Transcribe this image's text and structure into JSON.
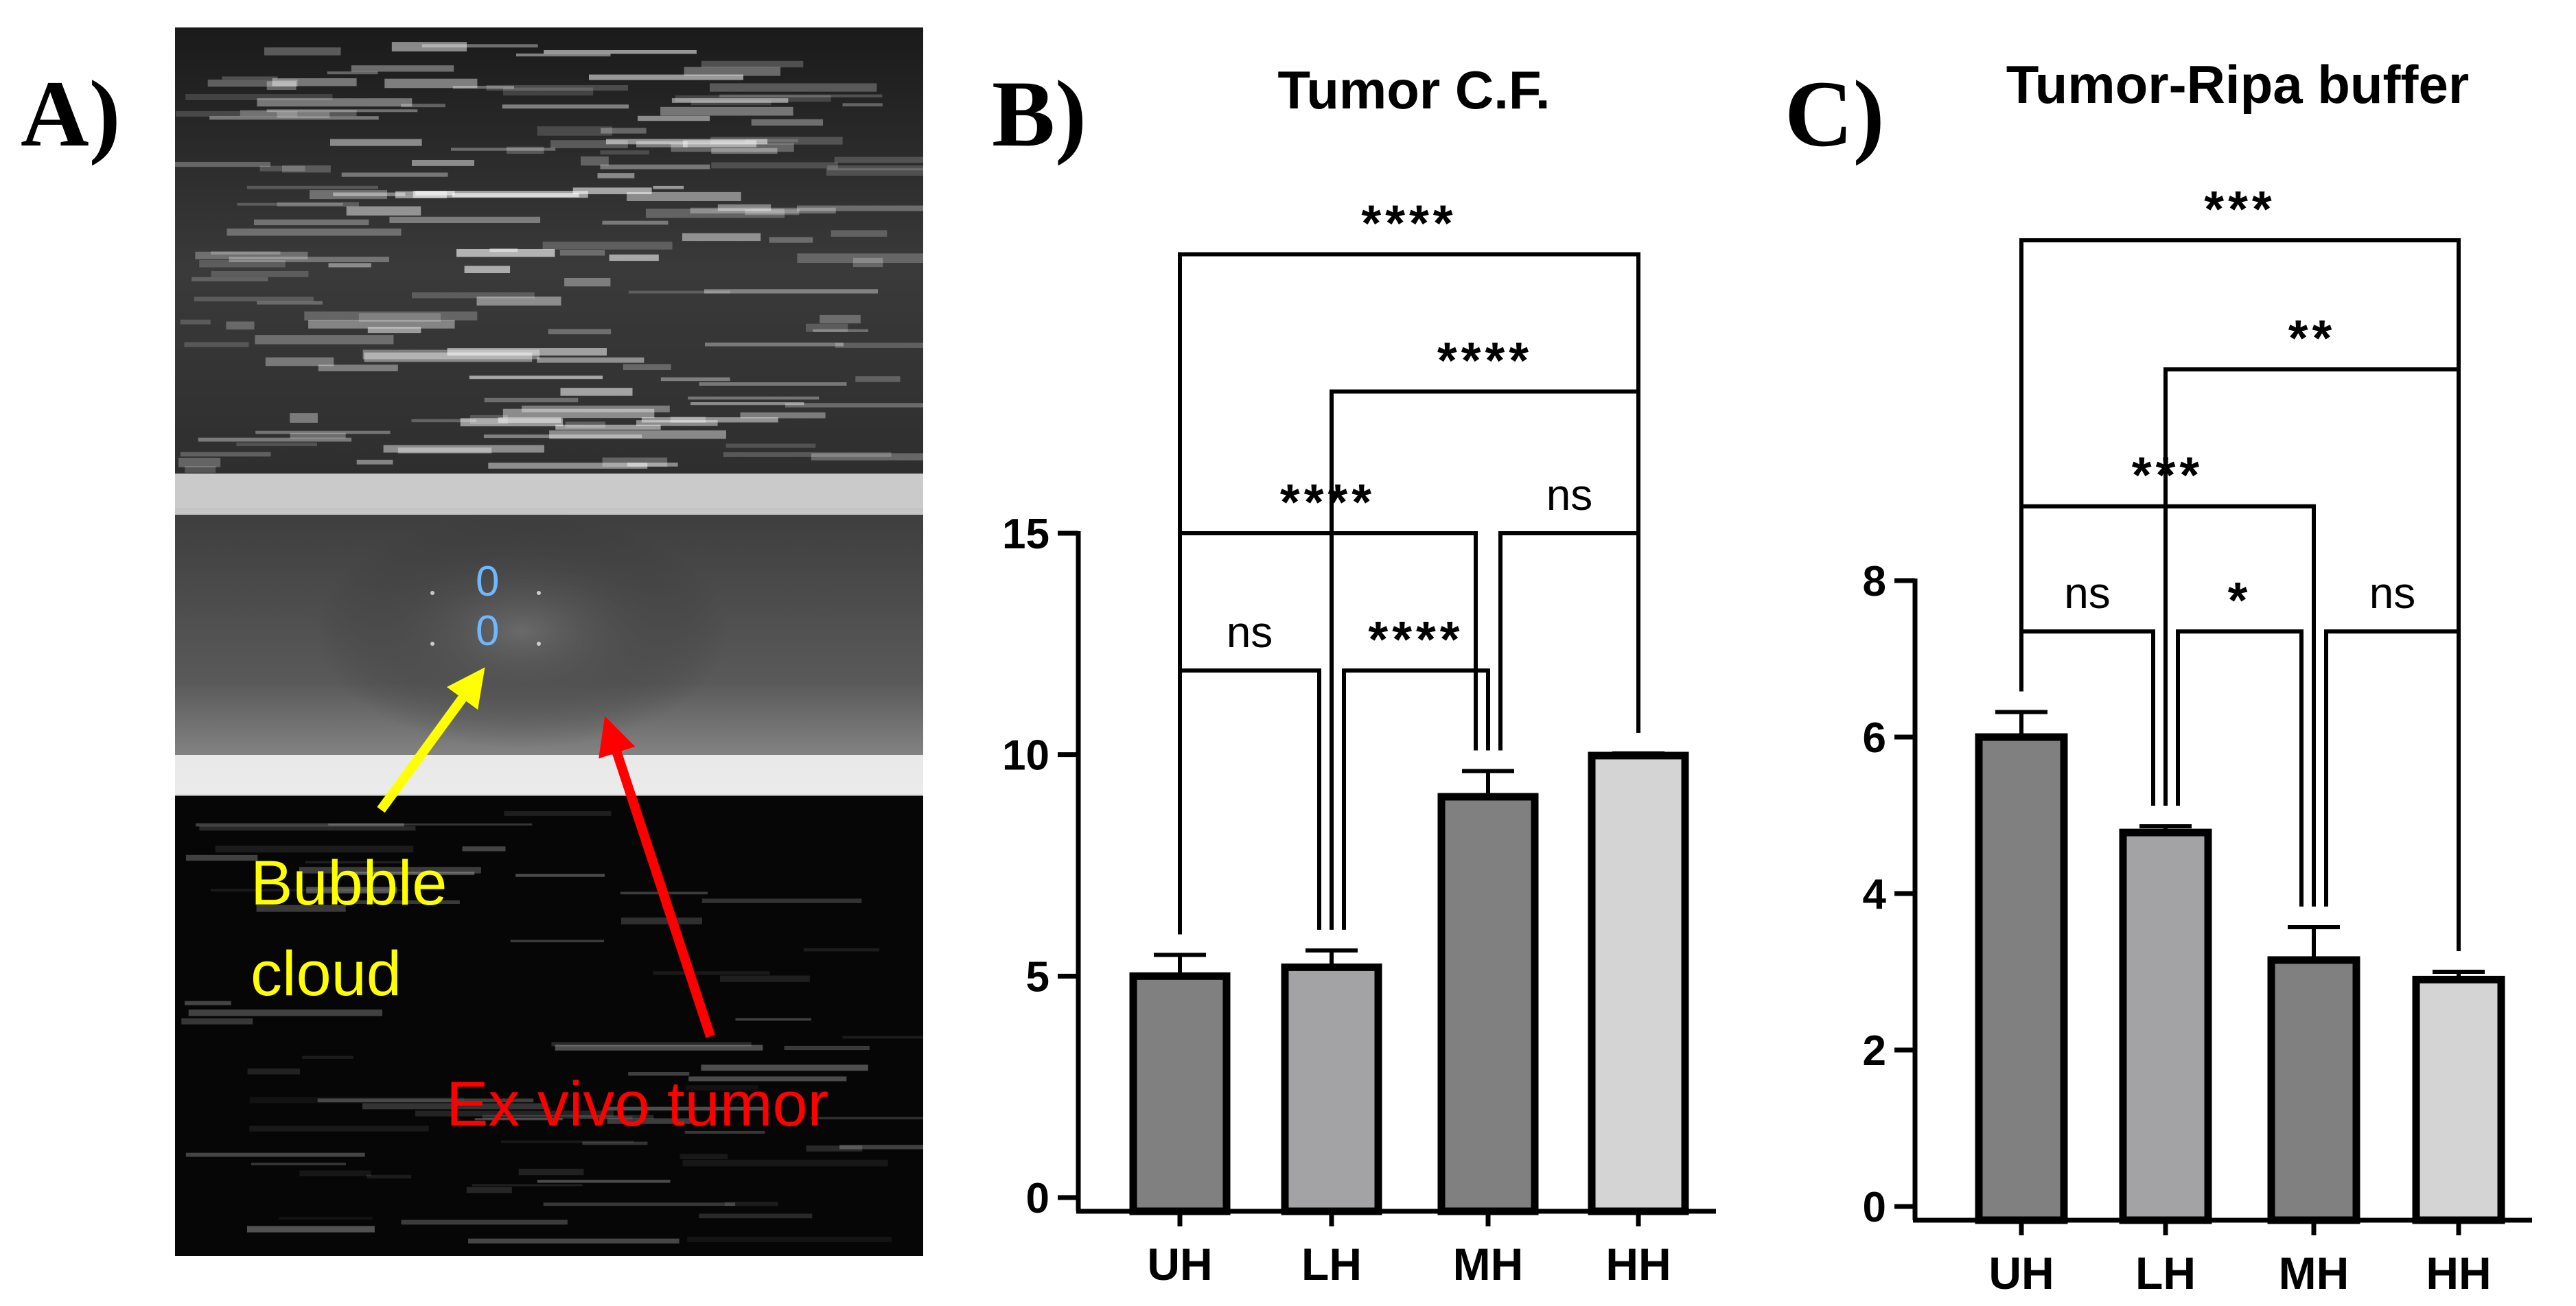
{
  "panels": {
    "a": {
      "label": "A)",
      "annotations": {
        "bubble_line1": "Bubble",
        "bubble_line2": "cloud",
        "tumor": "Ex vivo tumor",
        "marker_top": "0",
        "marker_bottom": "0"
      },
      "colors": {
        "bubble": "#ffff00",
        "tumor": "#ff0000"
      }
    },
    "b": {
      "label": "B)"
    },
    "c": {
      "label": "C)"
    }
  },
  "chart_data": [
    {
      "type": "bar",
      "title": "Tumor C.F.",
      "categories": [
        "UH",
        "LH",
        "MH",
        "HH"
      ],
      "values": [
        5.0,
        5.2,
        9.05,
        9.98
      ],
      "errors": [
        0.48,
        0.38,
        0.58,
        0.05
      ],
      "bar_colors": [
        "#808080",
        "#a3a3a6",
        "#808080",
        "#d4d4d4"
      ],
      "xlabel": "",
      "ylabel": "",
      "ylim": [
        0,
        15
      ],
      "yticks": [
        "0",
        "5",
        "10",
        "15"
      ],
      "significance": [
        {
          "from": "UH",
          "to": "LH",
          "label": "ns",
          "level": 11.9
        },
        {
          "from": "LH",
          "to": "MH",
          "label": "****",
          "level": 11.9
        },
        {
          "from": "UH",
          "to": "MH",
          "label": "****",
          "level": 15.0
        },
        {
          "from": "MH",
          "to": "HH",
          "label": "ns",
          "level": 15.0
        },
        {
          "from": "LH",
          "to": "HH",
          "label": "****",
          "level": 18.2
        },
        {
          "from": "UH",
          "to": "HH",
          "label": "****",
          "level": 21.3
        }
      ]
    },
    {
      "type": "bar",
      "title": "Tumor-Ripa buffer",
      "categories": [
        "UH",
        "LH",
        "MH",
        "HH"
      ],
      "values": [
        6.0,
        4.78,
        3.15,
        2.9
      ],
      "errors": [
        0.32,
        0.08,
        0.42,
        0.1
      ],
      "bar_colors": [
        "#808080",
        "#a3a3a6",
        "#808080",
        "#d4d4d4"
      ],
      "xlabel": "",
      "ylabel": "",
      "ylim": [
        0,
        8
      ],
      "yticks": [
        "0",
        "2",
        "4",
        "6",
        "8"
      ],
      "significance": [
        {
          "from": "UH",
          "to": "LH",
          "label": "ns",
          "level": 7.35
        },
        {
          "from": "LH",
          "to": "MH",
          "label": "*",
          "level": 7.35
        },
        {
          "from": "MH",
          "to": "HH",
          "label": "ns",
          "level": 7.35
        },
        {
          "from": "UH",
          "to": "MH",
          "label": "***",
          "level": 8.95
        },
        {
          "from": "LH",
          "to": "HH",
          "label": "**",
          "level": 10.7
        },
        {
          "from": "UH",
          "to": "HH",
          "label": "***",
          "level": 12.35
        }
      ]
    }
  ]
}
